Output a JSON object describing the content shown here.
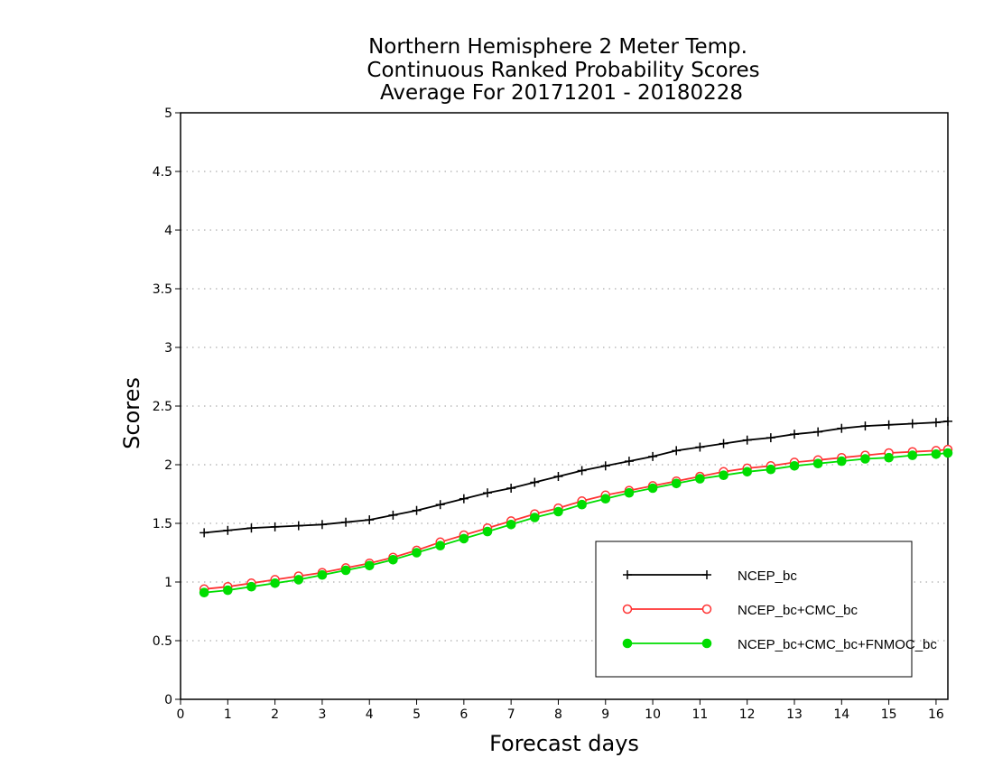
{
  "chart_data": {
    "type": "line",
    "title": [
      "Northern Hemisphere 2 Meter Temp.",
      "Continuous Ranked Probability Scores",
      "Average For 20171201 - 20180228"
    ],
    "xlabel": "Forecast days",
    "ylabel": "Scores",
    "xlim": [
      0,
      16.25
    ],
    "ylim": [
      0,
      5
    ],
    "xticks": [
      "0",
      "1",
      "2",
      "3",
      "4",
      "5",
      "6",
      "7",
      "8",
      "9",
      "10",
      "11",
      "12",
      "13",
      "14",
      "15",
      "16"
    ],
    "yticks": [
      "0",
      "0.5",
      "1",
      "1.5",
      "2",
      "2.5",
      "3",
      "3.5",
      "4",
      "4.5",
      "5"
    ],
    "grid": true,
    "legend_position": "bottom-right",
    "x": [
      0.5,
      1,
      1.5,
      2,
      2.5,
      3,
      3.5,
      4,
      4.5,
      5,
      5.5,
      6,
      6.5,
      7,
      7.5,
      8,
      8.5,
      9,
      9.5,
      10,
      10.5,
      11,
      11.5,
      12,
      12.5,
      13,
      13.5,
      14,
      14.5,
      15,
      15.5,
      16,
      16.25
    ],
    "series": [
      {
        "name": "NCEP_bc",
        "color": "#000000",
        "marker": "plus",
        "values": [
          1.42,
          1.44,
          1.46,
          1.47,
          1.48,
          1.49,
          1.51,
          1.53,
          1.57,
          1.61,
          1.66,
          1.71,
          1.76,
          1.8,
          1.85,
          1.9,
          1.95,
          1.99,
          2.03,
          2.07,
          2.12,
          2.15,
          2.18,
          2.21,
          2.23,
          2.26,
          2.28,
          2.31,
          2.33,
          2.34,
          2.35,
          2.36,
          2.37
        ]
      },
      {
        "name": "NCEP_bc+CMC_bc",
        "color": "#ff3333",
        "marker": "circle-open",
        "values": [
          0.94,
          0.96,
          0.99,
          1.02,
          1.05,
          1.08,
          1.12,
          1.16,
          1.21,
          1.27,
          1.34,
          1.4,
          1.46,
          1.52,
          1.58,
          1.63,
          1.69,
          1.74,
          1.78,
          1.82,
          1.86,
          1.9,
          1.94,
          1.97,
          1.99,
          2.02,
          2.04,
          2.06,
          2.08,
          2.1,
          2.11,
          2.12,
          2.13
        ]
      },
      {
        "name": "NCEP_bc+CMC_bc+FNMOC_bc",
        "color": "#00dd00",
        "marker": "circle-filled",
        "values": [
          0.91,
          0.93,
          0.96,
          0.99,
          1.02,
          1.06,
          1.1,
          1.14,
          1.19,
          1.25,
          1.31,
          1.37,
          1.43,
          1.49,
          1.55,
          1.6,
          1.66,
          1.71,
          1.76,
          1.8,
          1.84,
          1.88,
          1.91,
          1.94,
          1.96,
          1.99,
          2.01,
          2.03,
          2.05,
          2.06,
          2.08,
          2.09,
          2.1
        ]
      }
    ]
  }
}
